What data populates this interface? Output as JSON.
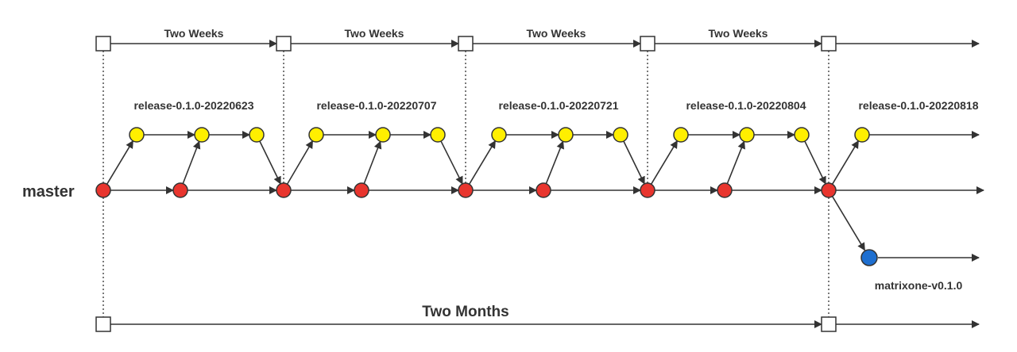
{
  "timeline": {
    "interval_label": "Two Weeks",
    "period_label": "Two Months"
  },
  "branches": {
    "master_label": "master",
    "releases": [
      "release-0.1.0-20220623",
      "release-0.1.0-20220707",
      "release-0.1.0-20220721",
      "release-0.1.0-20220804",
      "release-0.1.0-20220818"
    ],
    "tag_label": "matrixone-v0.1.0"
  },
  "colors": {
    "master_commit": "#e8352e",
    "release_commit": "#ffef00",
    "tag_commit": "#1e6fd0",
    "line": "#333333",
    "milestone_box": "#ffffff"
  }
}
